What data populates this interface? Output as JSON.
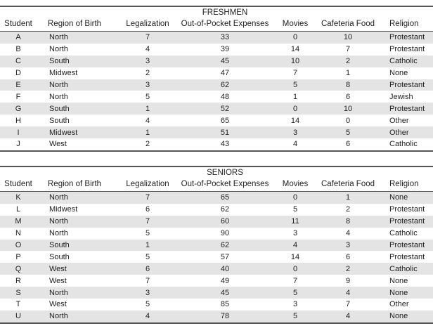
{
  "columns": {
    "student": "Student",
    "region": "Region of Birth",
    "legalization": "Legalization",
    "expenses": "Out-of-Pocket Expenses",
    "movies": "Movies",
    "food": "Cafeteria Food",
    "religion": "Religion"
  },
  "freshmen": {
    "title": "FRESHMEN",
    "rows": [
      {
        "student": "A",
        "region": "North",
        "legalization": "7",
        "expenses": "33",
        "movies": "0",
        "food": "10",
        "religion": "Protestant"
      },
      {
        "student": "B",
        "region": "North",
        "legalization": "4",
        "expenses": "39",
        "movies": "14",
        "food": "7",
        "religion": "Protestant"
      },
      {
        "student": "C",
        "region": "South",
        "legalization": "3",
        "expenses": "45",
        "movies": "10",
        "food": "2",
        "religion": "Catholic"
      },
      {
        "student": "D",
        "region": "Midwest",
        "legalization": "2",
        "expenses": "47",
        "movies": "7",
        "food": "1",
        "religion": "None"
      },
      {
        "student": "E",
        "region": "North",
        "legalization": "3",
        "expenses": "62",
        "movies": "5",
        "food": "8",
        "religion": "Protestant"
      },
      {
        "student": "F",
        "region": "North",
        "legalization": "5",
        "expenses": "48",
        "movies": "1",
        "food": "6",
        "religion": "Jewish"
      },
      {
        "student": "G",
        "region": "South",
        "legalization": "1",
        "expenses": "52",
        "movies": "0",
        "food": "10",
        "religion": "Protestant"
      },
      {
        "student": "H",
        "region": "South",
        "legalization": "4",
        "expenses": "65",
        "movies": "14",
        "food": "0",
        "religion": "Other"
      },
      {
        "student": "I",
        "region": "Midwest",
        "legalization": "1",
        "expenses": "51",
        "movies": "3",
        "food": "5",
        "religion": "Other"
      },
      {
        "student": "J",
        "region": "West",
        "legalization": "2",
        "expenses": "43",
        "movies": "4",
        "food": "6",
        "religion": "Catholic"
      }
    ]
  },
  "seniors": {
    "title": "SENIORS",
    "rows": [
      {
        "student": "K",
        "region": "North",
        "legalization": "7",
        "expenses": "65",
        "movies": "0",
        "food": "1",
        "religion": "None"
      },
      {
        "student": "L",
        "region": "Midwest",
        "legalization": "6",
        "expenses": "62",
        "movies": "5",
        "food": "2",
        "religion": "Protestant"
      },
      {
        "student": "M",
        "region": "North",
        "legalization": "7",
        "expenses": "60",
        "movies": "11",
        "food": "8",
        "religion": "Protestant"
      },
      {
        "student": "N",
        "region": "North",
        "legalization": "5",
        "expenses": "90",
        "movies": "3",
        "food": "4",
        "religion": "Catholic"
      },
      {
        "student": "O",
        "region": "South",
        "legalization": "1",
        "expenses": "62",
        "movies": "4",
        "food": "3",
        "religion": "Protestant"
      },
      {
        "student": "P",
        "region": "South",
        "legalization": "5",
        "expenses": "57",
        "movies": "14",
        "food": "6",
        "religion": "Protestant"
      },
      {
        "student": "Q",
        "region": "West",
        "legalization": "6",
        "expenses": "40",
        "movies": "0",
        "food": "2",
        "religion": "Catholic"
      },
      {
        "student": "R",
        "region": "West",
        "legalization": "7",
        "expenses": "49",
        "movies": "7",
        "food": "9",
        "religion": "None"
      },
      {
        "student": "S",
        "region": "North",
        "legalization": "3",
        "expenses": "45",
        "movies": "5",
        "food": "4",
        "religion": "None"
      },
      {
        "student": "T",
        "region": "West",
        "legalization": "5",
        "expenses": "85",
        "movies": "3",
        "food": "7",
        "religion": "Other"
      },
      {
        "student": "U",
        "region": "North",
        "legalization": "4",
        "expenses": "78",
        "movies": "5",
        "food": "4",
        "religion": "None"
      }
    ]
  }
}
